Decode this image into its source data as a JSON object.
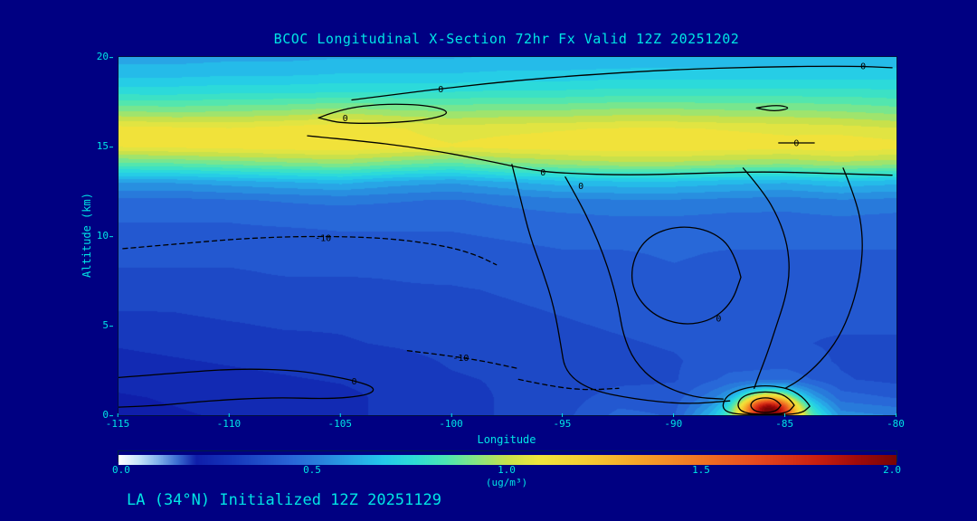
{
  "page": {
    "background": "#000082",
    "accent_text_color": "#00e5e5",
    "title": "BCOC Longitudinal X-Section 72hr  Fx Valid 12Z 20251202",
    "footer": "LA (34°N) Initialized 12Z 20251129"
  },
  "chart_data": {
    "type": "heatmap",
    "title": "BCOC Longitudinal X-Section 72hr  Fx Valid 12Z 20251202",
    "xlabel": "Longitude",
    "ylabel": "Altitude (km)",
    "xlim": [
      -115,
      -80
    ],
    "ylim": [
      0,
      20
    ],
    "xticks": [
      "-115",
      "-110",
      "-105",
      "-100",
      "-95",
      "-90",
      "-85",
      "-80"
    ],
    "yticks": [
      "0",
      "5",
      "10",
      "15",
      "20"
    ],
    "colorbar": {
      "min": 0.0,
      "max": 2.0,
      "ticks": [
        "0.0",
        "0.5",
        "1.0",
        "1.5",
        "2.0"
      ],
      "units": "(ug/m³)"
    },
    "colormap": [
      [
        0.0,
        "#ffffff"
      ],
      [
        0.05,
        "#c8e6fa"
      ],
      [
        0.1,
        "#82b4ec"
      ],
      [
        0.15,
        "#3c6ed2"
      ],
      [
        0.2,
        "#0f1eaa"
      ],
      [
        0.28,
        "#1432b9"
      ],
      [
        0.36,
        "#1e4cc8"
      ],
      [
        0.44,
        "#2864d7"
      ],
      [
        0.52,
        "#2882dc"
      ],
      [
        0.6,
        "#28a5e6"
      ],
      [
        0.68,
        "#23c8eb"
      ],
      [
        0.76,
        "#2ddcd7"
      ],
      [
        0.84,
        "#4be6b4"
      ],
      [
        0.92,
        "#87e682"
      ],
      [
        1.0,
        "#c8e14b"
      ],
      [
        1.08,
        "#f0e63c"
      ],
      [
        1.2,
        "#f5cd32"
      ],
      [
        1.35,
        "#f5a028"
      ],
      [
        1.5,
        "#f07323"
      ],
      [
        1.65,
        "#e6461e"
      ],
      [
        1.8,
        "#c81e0f"
      ],
      [
        1.9,
        "#a00a0a"
      ],
      [
        2.0,
        "#780505"
      ]
    ],
    "grid": {
      "lons": [
        -115,
        -112.5,
        -110,
        -107.5,
        -105,
        -102.5,
        -100,
        -97.5,
        -95,
        -92.5,
        -90,
        -87.5,
        -85,
        -82.5,
        -80
      ],
      "alts": [
        0,
        1,
        2,
        3,
        4,
        5,
        6,
        7,
        8,
        9,
        10,
        11,
        12,
        13,
        14,
        15,
        16,
        17,
        18,
        19,
        20
      ],
      "values": [
        [
          0.21,
          0.22,
          0.23,
          0.24,
          0.26,
          0.29,
          0.31,
          0.33,
          0.36,
          0.44,
          0.42,
          0.75,
          1.05,
          0.55,
          0.52
        ],
        [
          0.22,
          0.23,
          0.24,
          0.25,
          0.26,
          0.29,
          0.31,
          0.33,
          0.35,
          0.4,
          0.4,
          0.55,
          0.7,
          0.45,
          0.42
        ],
        [
          0.24,
          0.25,
          0.26,
          0.27,
          0.28,
          0.3,
          0.32,
          0.33,
          0.34,
          0.36,
          0.37,
          0.44,
          0.46,
          0.38,
          0.36
        ],
        [
          0.26,
          0.27,
          0.28,
          0.29,
          0.3,
          0.31,
          0.33,
          0.34,
          0.35,
          0.36,
          0.37,
          0.4,
          0.4,
          0.37,
          0.36
        ],
        [
          0.28,
          0.29,
          0.3,
          0.31,
          0.32,
          0.33,
          0.34,
          0.35,
          0.36,
          0.37,
          0.38,
          0.39,
          0.38,
          0.37,
          0.37
        ],
        [
          0.3,
          0.31,
          0.32,
          0.33,
          0.33,
          0.34,
          0.35,
          0.36,
          0.37,
          0.38,
          0.39,
          0.39,
          0.38,
          0.38,
          0.38
        ],
        [
          0.33,
          0.33,
          0.34,
          0.34,
          0.35,
          0.35,
          0.36,
          0.37,
          0.38,
          0.39,
          0.4,
          0.4,
          0.39,
          0.39,
          0.39
        ],
        [
          0.35,
          0.35,
          0.36,
          0.36,
          0.36,
          0.37,
          0.37,
          0.38,
          0.39,
          0.4,
          0.41,
          0.41,
          0.4,
          0.4,
          0.4
        ],
        [
          0.37,
          0.37,
          0.37,
          0.38,
          0.38,
          0.38,
          0.39,
          0.4,
          0.4,
          0.41,
          0.42,
          0.41,
          0.41,
          0.41,
          0.41
        ],
        [
          0.39,
          0.39,
          0.39,
          0.4,
          0.4,
          0.4,
          0.4,
          0.41,
          0.42,
          0.42,
          0.43,
          0.42,
          0.42,
          0.42,
          0.42
        ],
        [
          0.41,
          0.41,
          0.41,
          0.41,
          0.42,
          0.42,
          0.42,
          0.43,
          0.44,
          0.44,
          0.44,
          0.44,
          0.44,
          0.44,
          0.44
        ],
        [
          0.43,
          0.43,
          0.43,
          0.44,
          0.44,
          0.44,
          0.44,
          0.45,
          0.46,
          0.47,
          0.47,
          0.46,
          0.46,
          0.47,
          0.46
        ],
        [
          0.46,
          0.46,
          0.47,
          0.48,
          0.49,
          0.48,
          0.47,
          0.49,
          0.51,
          0.52,
          0.52,
          0.51,
          0.5,
          0.52,
          0.51
        ],
        [
          0.58,
          0.58,
          0.6,
          0.62,
          0.64,
          0.6,
          0.58,
          0.62,
          0.65,
          0.66,
          0.66,
          0.64,
          0.63,
          0.66,
          0.64
        ],
        [
          0.85,
          0.86,
          0.88,
          0.9,
          0.92,
          0.88,
          0.85,
          0.9,
          0.93,
          0.95,
          0.95,
          0.93,
          0.92,
          0.95,
          0.93
        ],
        [
          1.08,
          1.09,
          1.1,
          1.11,
          1.12,
          1.1,
          1.08,
          1.1,
          1.11,
          1.12,
          1.12,
          1.11,
          1.1,
          1.12,
          1.1
        ],
        [
          1.1,
          1.09,
          1.08,
          1.1,
          1.12,
          1.08,
          1.05,
          1.06,
          1.07,
          1.08,
          1.08,
          1.07,
          1.06,
          1.05,
          1.03
        ],
        [
          0.92,
          0.91,
          0.92,
          0.93,
          0.95,
          0.93,
          0.92,
          0.93,
          0.93,
          0.94,
          0.94,
          0.93,
          0.93,
          0.92,
          0.9
        ],
        [
          0.76,
          0.76,
          0.77,
          0.77,
          0.78,
          0.78,
          0.78,
          0.79,
          0.79,
          0.8,
          0.8,
          0.8,
          0.8,
          0.8,
          0.79
        ],
        [
          0.66,
          0.66,
          0.67,
          0.67,
          0.68,
          0.68,
          0.68,
          0.69,
          0.69,
          0.7,
          0.7,
          0.7,
          0.7,
          0.7,
          0.7
        ],
        [
          0.6,
          0.6,
          0.61,
          0.61,
          0.62,
          0.62,
          0.62,
          0.63,
          0.63,
          0.63,
          0.64,
          0.64,
          0.64,
          0.64,
          0.64
        ]
      ]
    },
    "plume": {
      "center_lon": -85.8,
      "center_alt": 0.35,
      "peak_add": 1.15,
      "lon_radius": 1.2,
      "alt_radius": 0.8
    },
    "contour_lines": [
      {
        "dash": false,
        "points": [
          [
            -104.5,
            17.6
          ],
          [
            -102,
            18.0
          ],
          [
            -100,
            18.3
          ],
          [
            -97,
            18.7
          ],
          [
            -94,
            19.0
          ],
          [
            -90,
            19.3
          ],
          [
            -86,
            19.45
          ],
          [
            -82,
            19.5
          ],
          [
            -80.2,
            19.4
          ]
        ]
      },
      {
        "dash": false,
        "points": [
          [
            -106,
            16.6
          ],
          [
            -105,
            17.1
          ],
          [
            -103,
            17.4
          ],
          [
            -101,
            17.3
          ],
          [
            -100,
            16.9
          ],
          [
            -101,
            16.5
          ],
          [
            -103,
            16.3
          ],
          [
            -105,
            16.3
          ],
          [
            -106,
            16.6
          ]
        ]
      },
      {
        "dash": false,
        "points": [
          [
            -106.5,
            15.6
          ],
          [
            -104,
            15.3
          ],
          [
            -102,
            15.0
          ],
          [
            -100,
            14.6
          ],
          [
            -98,
            14.1
          ],
          [
            -96.5,
            13.7
          ],
          [
            -95,
            13.5
          ],
          [
            -92,
            13.4
          ],
          [
            -89,
            13.5
          ],
          [
            -86,
            13.6
          ],
          [
            -83,
            13.5
          ],
          [
            -80.2,
            13.4
          ]
        ]
      },
      {
        "dash": false,
        "points": [
          [
            -97.3,
            14.0
          ],
          [
            -96.9,
            12.0
          ],
          [
            -96.5,
            10.0
          ],
          [
            -95.9,
            8.0
          ],
          [
            -95.4,
            6.0
          ],
          [
            -95.1,
            3.9
          ],
          [
            -94.9,
            2.4
          ],
          [
            -93.8,
            1.4
          ],
          [
            -91.8,
            0.9
          ],
          [
            -89.5,
            0.6
          ],
          [
            -87.5,
            0.8
          ]
        ]
      },
      {
        "dash": false,
        "points": [
          [
            -94.9,
            13.3
          ],
          [
            -94.3,
            12.0
          ],
          [
            -93.7,
            10.5
          ],
          [
            -93.2,
            9.0
          ],
          [
            -92.8,
            7.5
          ],
          [
            -92.5,
            6.0
          ],
          [
            -92.3,
            4.5
          ],
          [
            -91.8,
            3.0
          ],
          [
            -90.8,
            1.8
          ],
          [
            -89.2,
            1.0
          ],
          [
            -87.8,
            0.9
          ]
        ]
      },
      {
        "dash": false,
        "points": [
          [
            -87,
            7.7
          ],
          [
            -87.3,
            9.2
          ],
          [
            -88.3,
            10.3
          ],
          [
            -89.8,
            10.6
          ],
          [
            -91.2,
            10.0
          ],
          [
            -91.9,
            8.6
          ],
          [
            -91.9,
            7.0
          ],
          [
            -91.0,
            5.6
          ],
          [
            -89.6,
            5.0
          ],
          [
            -88.3,
            5.3
          ],
          [
            -87.4,
            6.3
          ],
          [
            -87,
            7.7
          ]
        ]
      },
      {
        "dash": false,
        "points": [
          [
            -86.9,
            13.8
          ],
          [
            -86.0,
            12.5
          ],
          [
            -85.3,
            11.0
          ],
          [
            -84.9,
            9.5
          ],
          [
            -84.8,
            8.0
          ],
          [
            -85.0,
            6.5
          ],
          [
            -85.4,
            5.0
          ],
          [
            -85.8,
            3.5
          ],
          [
            -86.2,
            2.2
          ],
          [
            -86.4,
            1.5
          ]
        ]
      },
      {
        "dash": false,
        "points": [
          [
            -82.4,
            13.8
          ],
          [
            -81.8,
            12.0
          ],
          [
            -81.5,
            10.0
          ],
          [
            -81.6,
            8.0
          ],
          [
            -82.0,
            6.0
          ],
          [
            -82.6,
            4.3
          ],
          [
            -83.4,
            3.0
          ],
          [
            -84.3,
            2.0
          ],
          [
            -85.0,
            1.5
          ]
        ]
      },
      {
        "dash": true,
        "points": [
          [
            -114.8,
            9.3
          ],
          [
            -112,
            9.6
          ],
          [
            -109,
            9.9
          ],
          [
            -106,
            10.0
          ],
          [
            -103,
            9.9
          ],
          [
            -100.5,
            9.5
          ],
          [
            -99,
            9.0
          ],
          [
            -98,
            8.4
          ]
        ]
      },
      {
        "dash": false,
        "points": [
          [
            -115,
            2.1
          ],
          [
            -112,
            2.4
          ],
          [
            -109.5,
            2.6
          ],
          [
            -107,
            2.5
          ],
          [
            -105.5,
            2.2
          ],
          [
            -104.3,
            1.9
          ],
          [
            -103.4,
            1.5
          ],
          [
            -103.8,
            1.1
          ],
          [
            -105.5,
            0.9
          ],
          [
            -108,
            1.0
          ],
          [
            -111,
            0.8
          ],
          [
            -113,
            0.55
          ],
          [
            -115,
            0.45
          ]
        ]
      },
      {
        "dash": false,
        "points": [
          [
            -86.3,
            17.15
          ],
          [
            -85.5,
            17.35
          ],
          [
            -84.7,
            17.15
          ],
          [
            -85.5,
            16.95
          ],
          [
            -86.3,
            17.15
          ]
        ]
      },
      {
        "dash": false,
        "points": [
          [
            -85.3,
            15.2
          ],
          [
            -83.7,
            15.2
          ]
        ]
      },
      {
        "dash": false,
        "points": [
          [
            -85.2,
            0.55
          ],
          [
            -85.4,
            0.87
          ],
          [
            -85.9,
            1.0
          ],
          [
            -86.4,
            0.87
          ],
          [
            -86.6,
            0.55
          ],
          [
            -86.4,
            0.23
          ],
          [
            -85.9,
            0.12
          ],
          [
            -85.4,
            0.23
          ],
          [
            -85.2,
            0.55
          ]
        ]
      },
      {
        "dash": false,
        "points": [
          [
            -84.6,
            0.55
          ],
          [
            -84.9,
            1.12
          ],
          [
            -85.9,
            1.35
          ],
          [
            -86.9,
            1.12
          ],
          [
            -87.2,
            0.55
          ],
          [
            -86.9,
            0.12
          ],
          [
            -85.9,
            0.03
          ],
          [
            -84.9,
            0.12
          ],
          [
            -84.6,
            0.55
          ]
        ]
      },
      {
        "dash": false,
        "points": [
          [
            -83.9,
            0.5
          ],
          [
            -84.3,
            1.3
          ],
          [
            -85.9,
            1.75
          ],
          [
            -87.5,
            1.3
          ],
          [
            -87.9,
            0.5
          ],
          [
            -87.5,
            0.06
          ],
          [
            -85.9,
            0.02
          ],
          [
            -84.3,
            0.06
          ],
          [
            -83.9,
            0.5
          ]
        ]
      },
      {
        "dash": true,
        "points": [
          [
            -102,
            3.6
          ],
          [
            -100,
            3.3
          ],
          [
            -98.5,
            3.0
          ],
          [
            -97,
            2.6
          ]
        ]
      },
      {
        "dash": true,
        "points": [
          [
            -97,
            2.0
          ],
          [
            -95.5,
            1.6
          ],
          [
            -94,
            1.4
          ],
          [
            -92.5,
            1.5
          ]
        ]
      }
    ],
    "contour_labels": [
      {
        "text": "0",
        "lon": -100.5,
        "alt": 18.2
      },
      {
        "text": "0",
        "lon": -81.5,
        "alt": 19.5
      },
      {
        "text": "0",
        "lon": -104.8,
        "alt": 16.6
      },
      {
        "text": "0",
        "lon": -95.9,
        "alt": 13.55
      },
      {
        "text": "0",
        "lon": -94.2,
        "alt": 12.8
      },
      {
        "text": "-10",
        "lon": -105.8,
        "alt": 9.9
      },
      {
        "text": "0",
        "lon": -104.4,
        "alt": 1.9
      },
      {
        "text": "0",
        "lon": -84.5,
        "alt": 15.2
      },
      {
        "text": "-10",
        "lon": -99.6,
        "alt": 3.2
      },
      {
        "text": "0",
        "lon": -88.0,
        "alt": 5.4
      }
    ]
  }
}
